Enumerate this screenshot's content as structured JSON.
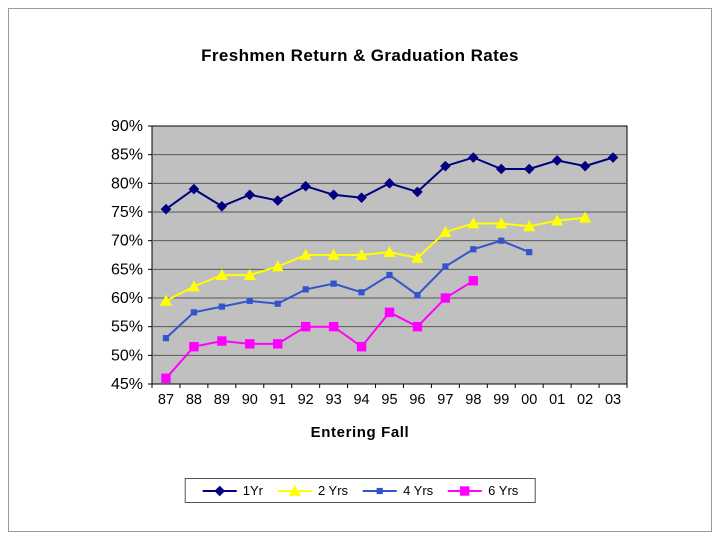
{
  "chart_data": {
    "type": "line",
    "title": "Freshmen Return & Graduation Rates",
    "xlabel": "Entering Fall",
    "ylabel": "",
    "categories": [
      "87",
      "88",
      "89",
      "90",
      "91",
      "92",
      "93",
      "94",
      "95",
      "96",
      "97",
      "98",
      "99",
      "00",
      "01",
      "02",
      "03"
    ],
    "y_tick_labels": [
      "45%",
      "50%",
      "55%",
      "60%",
      "65%",
      "70%",
      "75%",
      "80%",
      "85%",
      "90%"
    ],
    "ylim": [
      45,
      90
    ],
    "y_step": 5,
    "grid": true,
    "legend_position": "bottom",
    "plot_bg": "#C0C0C0",
    "grid_color": "#595959",
    "series": [
      {
        "name": "1Yr",
        "color": "#000080",
        "marker": "diamond",
        "values": [
          75.5,
          79,
          76,
          78,
          77,
          79.5,
          78,
          77.5,
          80,
          78.5,
          83,
          84.5,
          82.5,
          82.5,
          84,
          83,
          84.5
        ]
      },
      {
        "name": "2 Yrs",
        "color": "#FFFF00",
        "marker": "triangle",
        "values": [
          59.5,
          62,
          64,
          64,
          65.5,
          67.5,
          67.5,
          67.5,
          68,
          67,
          71.5,
          73,
          73,
          72.5,
          73.5,
          74,
          null
        ]
      },
      {
        "name": "4 Yrs",
        "color": "#3355CC",
        "marker": "dot",
        "values": [
          53,
          57.5,
          58.5,
          59.5,
          59,
          61.5,
          62.5,
          61,
          64,
          60.5,
          65.5,
          68.5,
          70,
          68,
          null,
          null,
          null
        ]
      },
      {
        "name": "6 Yrs",
        "color": "#FF00FF",
        "marker": "square",
        "values": [
          46,
          51.5,
          52.5,
          52,
          52,
          55,
          55,
          51.5,
          57.5,
          55,
          60,
          63,
          null,
          null,
          null,
          null,
          null
        ]
      }
    ]
  }
}
